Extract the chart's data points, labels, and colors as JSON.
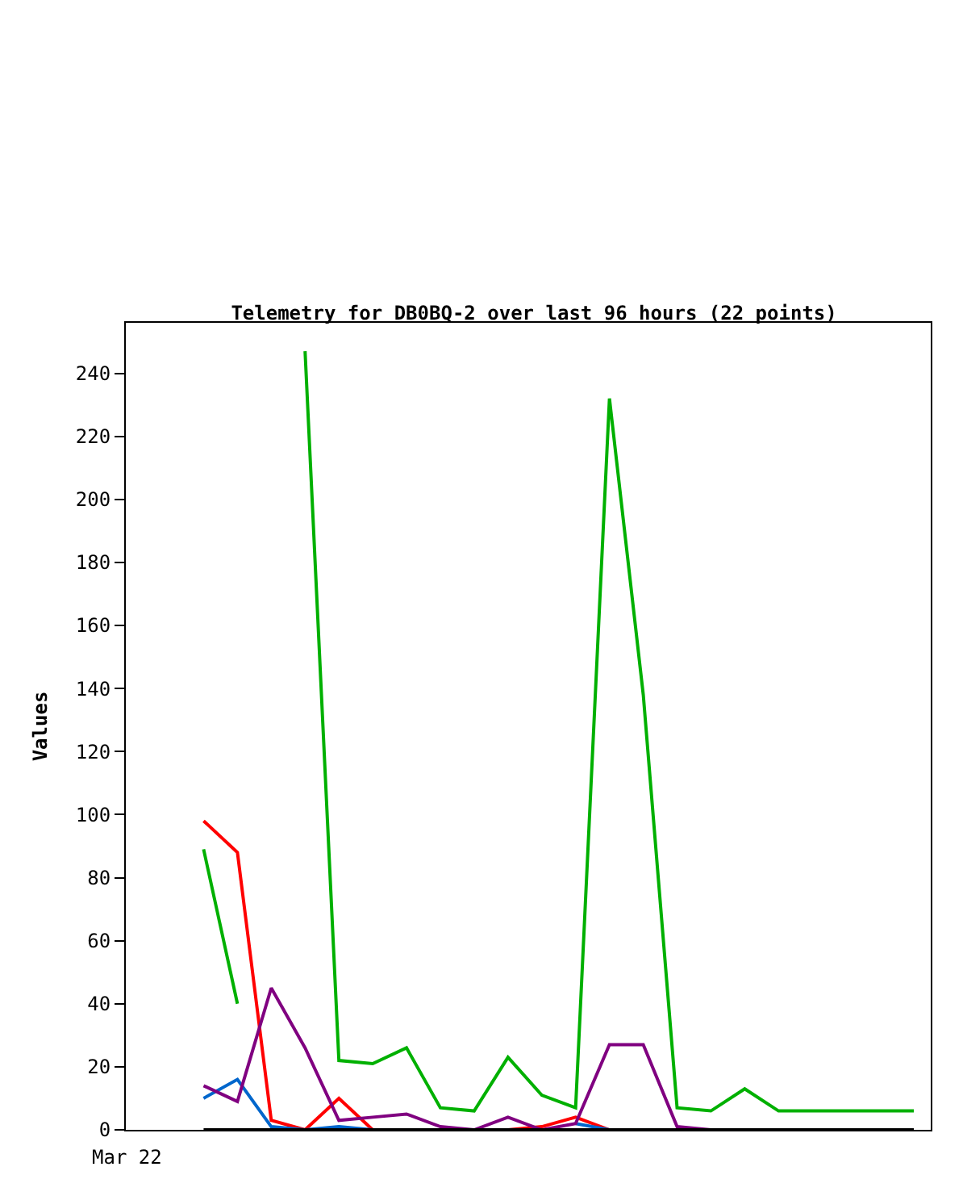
{
  "chart_data": {
    "type": "line",
    "title": "Telemetry for DB0BQ-2 over last 96 hours (22 points)",
    "ylabel": "Values",
    "categories": [
      null,
      null,
      null,
      null,
      null,
      null,
      null,
      null,
      null,
      null,
      null,
      null,
      null,
      null,
      null,
      null,
      null,
      null,
      null,
      null,
      null,
      null
    ],
    "annotations": [
      "Mar 22"
    ],
    "ylim": [
      0,
      256
    ],
    "yticks": [
      0,
      20,
      40,
      60,
      80,
      100,
      120,
      140,
      160,
      180,
      200,
      220,
      240
    ],
    "grid": false,
    "marker": "none",
    "line_style": "solid",
    "series": [
      {
        "color": "#00b000",
        "values": [
          89,
          40,
          null,
          247,
          22,
          21,
          26,
          7,
          6,
          23,
          11,
          7,
          232,
          138,
          7,
          6,
          13,
          6,
          6,
          6,
          6,
          6
        ]
      },
      {
        "color": "#ff0000",
        "values": [
          98,
          88,
          3,
          0,
          10,
          0,
          null,
          null,
          null,
          0,
          1,
          4,
          0,
          null,
          null,
          null,
          null,
          null,
          null,
          null,
          null,
          null
        ]
      },
      {
        "color": "#0066cc",
        "values": [
          10,
          16,
          1,
          0,
          1,
          0,
          null,
          null,
          null,
          null,
          null,
          2,
          0,
          null,
          null,
          null,
          null,
          null,
          null,
          null,
          null,
          null
        ]
      },
      {
        "color": "#800080",
        "values": [
          14,
          9,
          45,
          26,
          3,
          4,
          5,
          1,
          0,
          4,
          0,
          2,
          27,
          27,
          1,
          0,
          null,
          null,
          null,
          null,
          null,
          null
        ]
      },
      {
        "color": "#000000",
        "values": [
          0,
          0,
          0,
          0,
          0,
          0,
          0,
          0,
          0,
          0,
          0,
          0,
          0,
          0,
          0,
          0,
          0,
          0,
          0,
          0,
          0,
          0
        ]
      }
    ]
  }
}
